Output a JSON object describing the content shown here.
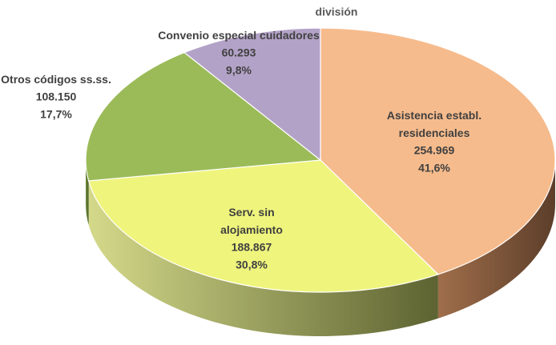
{
  "chart_data": {
    "type": "pie3d",
    "title": "división",
    "categories": [
      "Asistencia establ. residenciales",
      "Serv. sin alojamiento",
      "Otros códigos ss.ss.",
      "Convenio especial cuidadores"
    ],
    "values": [
      254969,
      188867,
      108150,
      60293
    ],
    "value_labels": [
      "254.969",
      "188.867",
      "108.150",
      "60.293"
    ],
    "percentages": [
      41.6,
      30.8,
      17.7,
      9.8
    ],
    "percent_labels": [
      "41,6%",
      "30,8%",
      "17,7%",
      "9,8%"
    ],
    "colors": [
      "#f6bb8c",
      "#eff47c",
      "#9bbb59",
      "#b3a2c7"
    ]
  }
}
